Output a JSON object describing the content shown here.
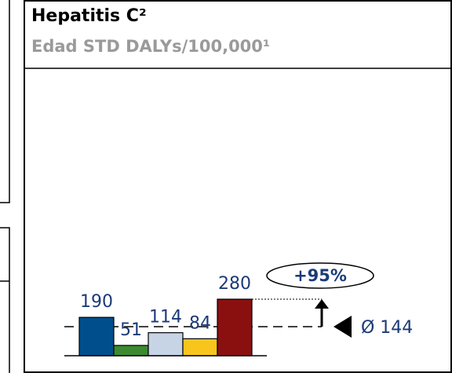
{
  "chart_data": {
    "type": "bar",
    "title": "Hepatitis C²",
    "subtitle": "Edad STD DALYs/100,000¹",
    "categories": [
      null,
      null,
      null,
      null,
      null
    ],
    "values": [
      190,
      51,
      114,
      84,
      280
    ],
    "colors": [
      "#004f8c",
      "#3b8a30",
      "#c7d4e6",
      "#f8c51c",
      "#8a1010"
    ],
    "average": 144,
    "average_label": "Ø 144",
    "annotation": "+95%"
  }
}
